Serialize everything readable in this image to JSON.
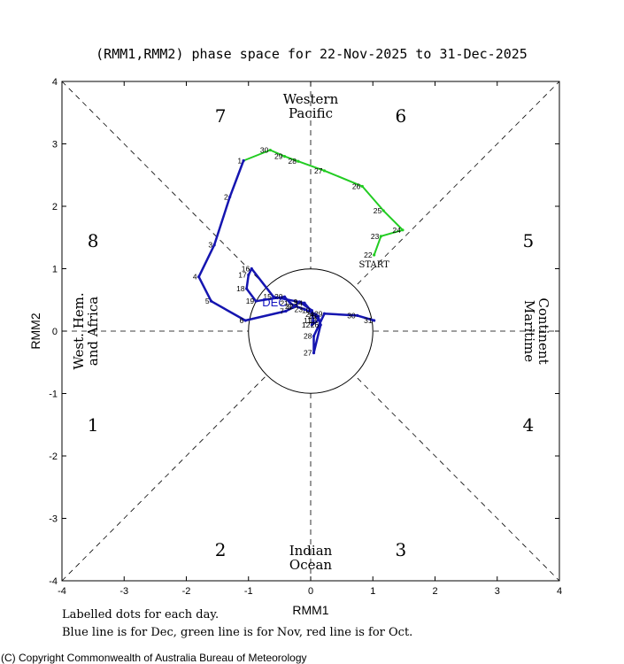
{
  "chart_data": {
    "type": "line",
    "title": "(RMM1,RMM2) phase space for 22-Nov-2025 to 31-Dec-2025",
    "xlabel": "RMM1",
    "ylabel": "RMM2",
    "xlim": [
      -4,
      4
    ],
    "ylim": [
      -4,
      4
    ],
    "x_ticks": [
      "-4",
      "-3",
      "-2",
      "-1",
      "0",
      "1",
      "2",
      "3",
      "4"
    ],
    "y_ticks": [
      "-4",
      "-3",
      "-2",
      "-1",
      "0",
      "1",
      "2",
      "3",
      "4"
    ],
    "phases": [
      {
        "label": "1",
        "x": -3.5,
        "y": -1.5
      },
      {
        "label": "2",
        "x": -1.45,
        "y": -3.5
      },
      {
        "label": "3",
        "x": 1.45,
        "y": -3.5
      },
      {
        "label": "4",
        "x": 3.5,
        "y": -1.5
      },
      {
        "label": "5",
        "x": 3.5,
        "y": 1.45
      },
      {
        "label": "6",
        "x": 1.45,
        "y": 3.45
      },
      {
        "label": "7",
        "x": -1.45,
        "y": 3.45
      },
      {
        "label": "8",
        "x": -3.5,
        "y": 1.45
      }
    ],
    "regions": {
      "top": [
        "Western",
        "Pacific"
      ],
      "bottom": [
        "Indian",
        "Ocean"
      ],
      "left": [
        "West. Hem.",
        "and Africa"
      ],
      "right": [
        "Maritime",
        "Continent"
      ]
    },
    "start_label": "START",
    "month_label": "DEC",
    "series": [
      {
        "name": "Nov",
        "color": "#22cc22",
        "points": [
          {
            "d": "22",
            "x": 1.02,
            "y": 1.22
          },
          {
            "d": "23",
            "x": 1.13,
            "y": 1.52
          },
          {
            "d": "24",
            "x": 1.48,
            "y": 1.62
          },
          {
            "d": "25",
            "x": 1.17,
            "y": 1.93
          },
          {
            "d": "26",
            "x": 0.83,
            "y": 2.32
          },
          {
            "d": "27",
            "x": 0.22,
            "y": 2.57
          },
          {
            "d": "28",
            "x": -0.2,
            "y": 2.72
          },
          {
            "d": "29",
            "x": -0.42,
            "y": 2.8
          },
          {
            "d": "30",
            "x": -0.65,
            "y": 2.9
          }
        ]
      },
      {
        "name": "Dec",
        "color": "#1515b0",
        "points": [
          {
            "d": "1",
            "x": -1.08,
            "y": 2.73
          },
          {
            "d": "2",
            "x": -1.3,
            "y": 2.15
          },
          {
            "d": "3",
            "x": -1.55,
            "y": 1.38
          },
          {
            "d": "4",
            "x": -1.8,
            "y": 0.87
          },
          {
            "d": "5",
            "x": -1.6,
            "y": 0.48
          },
          {
            "d": "6",
            "x": -1.05,
            "y": 0.17
          },
          {
            "d": "7",
            "x": -0.4,
            "y": 0.32
          },
          {
            "d": "8",
            "x": -0.28,
            "y": 0.38
          },
          {
            "d": "9",
            "x": -0.18,
            "y": 0.47
          },
          {
            "d": "10",
            "x": 0.02,
            "y": 0.33
          },
          {
            "d": "11",
            "x": 0.04,
            "y": 0.17
          },
          {
            "d": "12",
            "x": 0.02,
            "y": 0.1
          },
          {
            "d": "13",
            "x": 0.13,
            "y": 0.18
          },
          {
            "d": "14",
            "x": -0.1,
            "y": 0.45
          },
          {
            "d": "15",
            "x": -0.6,
            "y": 0.55
          },
          {
            "d": "16",
            "x": -0.95,
            "y": 1.0
          },
          {
            "d": "17",
            "x": -1.0,
            "y": 0.9
          },
          {
            "d": "18",
            "x": -1.03,
            "y": 0.68
          },
          {
            "d": "19",
            "x": -0.88,
            "y": 0.48
          },
          {
            "d": "20",
            "x": -0.42,
            "y": 0.55
          },
          {
            "d": "21",
            "x": -0.33,
            "y": 0.45
          },
          {
            "d": "22",
            "x": -0.25,
            "y": 0.4
          },
          {
            "d": "23",
            "x": -0.1,
            "y": 0.35
          },
          {
            "d": "24",
            "x": 0.08,
            "y": 0.27
          },
          {
            "d": "25",
            "x": 0.12,
            "y": 0.24
          },
          {
            "d": "26",
            "x": 0.16,
            "y": 0.1
          },
          {
            "d": "27",
            "x": 0.05,
            "y": -0.35
          },
          {
            "d": "28",
            "x": 0.05,
            "y": -0.08
          },
          {
            "d": "29",
            "x": 0.22,
            "y": 0.28
          },
          {
            "d": "30",
            "x": 0.75,
            "y": 0.25
          },
          {
            "d": "31",
            "x": 1.02,
            "y": 0.17
          }
        ]
      }
    ]
  },
  "notes": [
    "Labelled dots for each day.",
    "Blue line is for Dec, green line is for Nov, red line is for Oct."
  ],
  "copyright": "(C) Copyright Commonwealth of Australia Bureau of Meteorology"
}
